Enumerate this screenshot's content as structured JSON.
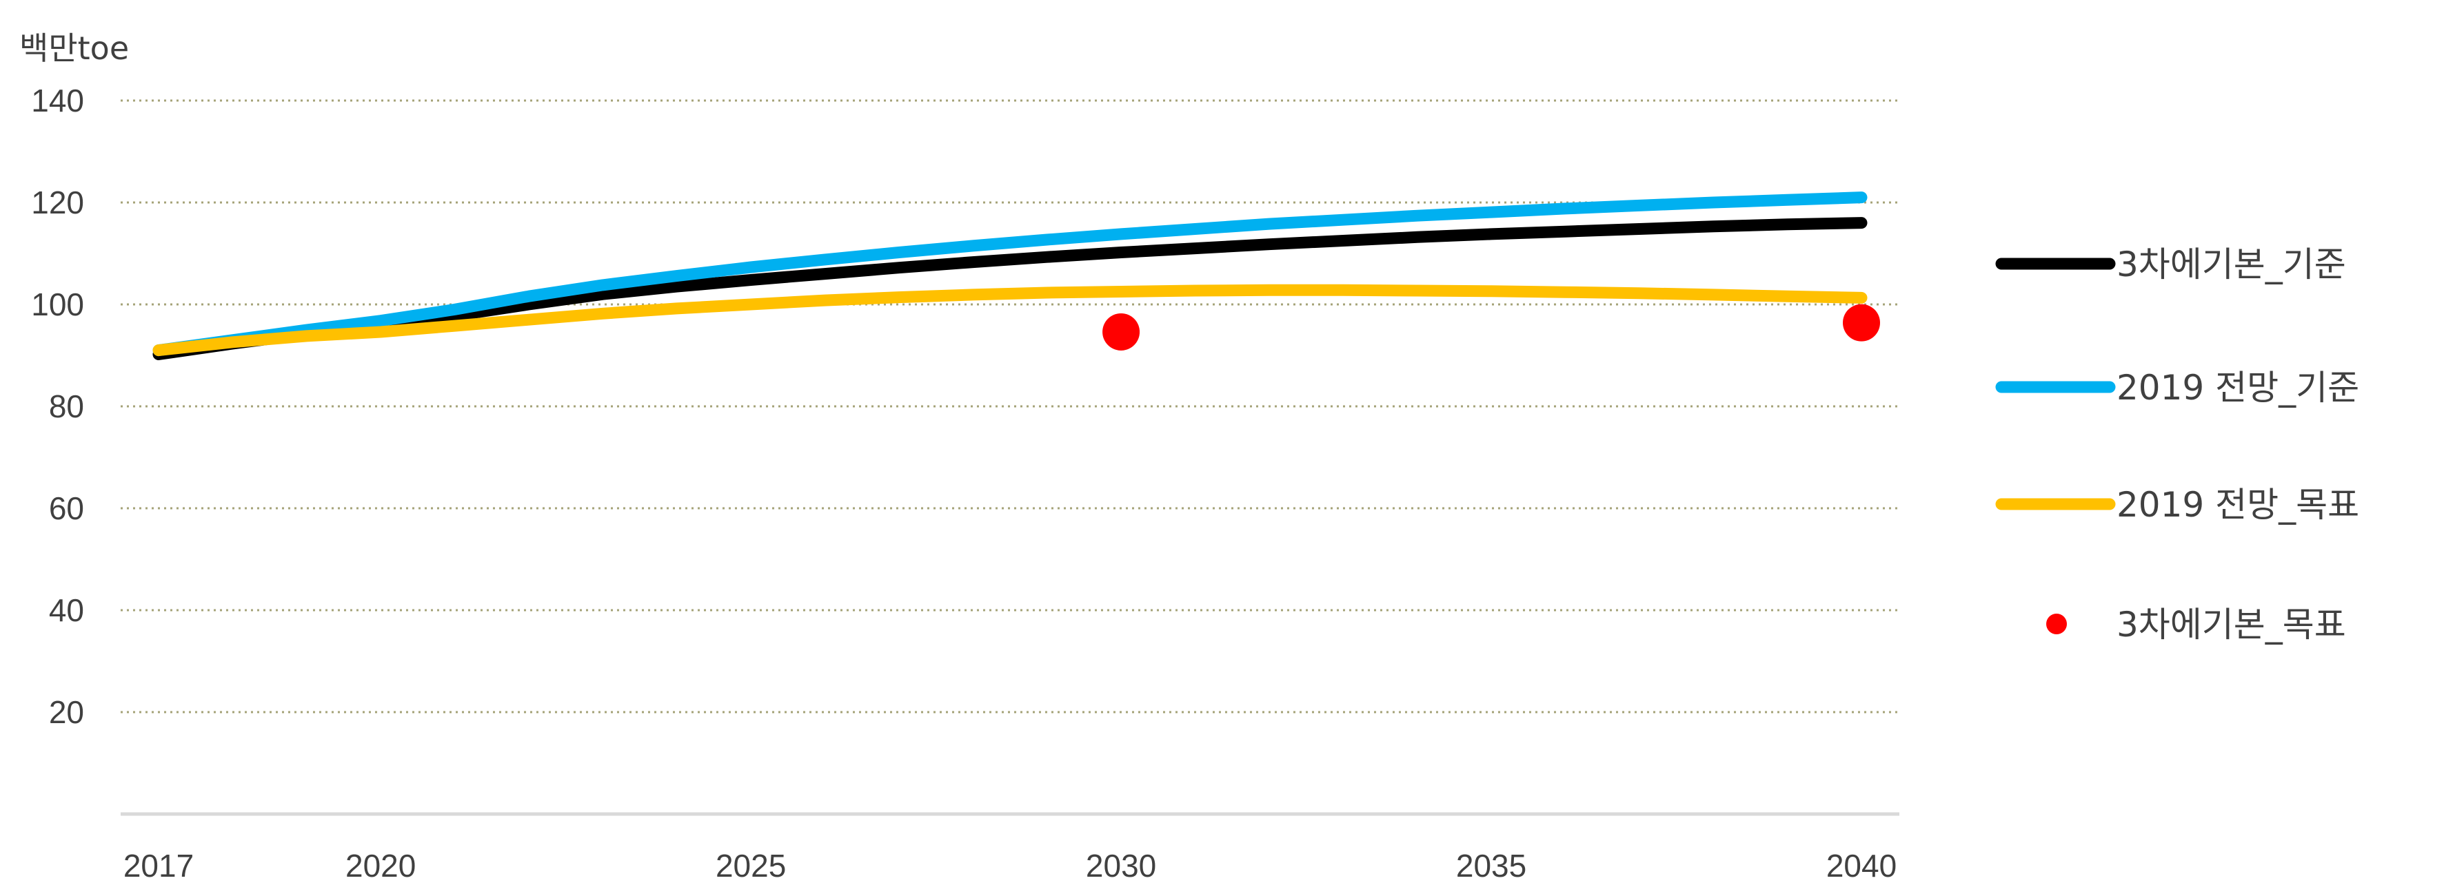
{
  "chart_data": {
    "type": "line",
    "ylabel": "백만toe",
    "ylim": [
      0,
      140
    ],
    "yticks": [
      20,
      40,
      60,
      80,
      100,
      120,
      140
    ],
    "xlim": [
      2017,
      2040
    ],
    "xticks": [
      2017,
      2020,
      2025,
      2030,
      2035,
      2040
    ],
    "grid": true,
    "legend_position": "right",
    "series": [
      {
        "name": "3차에기본_기준",
        "type": "line",
        "color": "#000000",
        "x": [
          2017,
          2018,
          2019,
          2020,
          2021,
          2022,
          2023,
          2024,
          2025,
          2026,
          2027,
          2028,
          2029,
          2030,
          2031,
          2032,
          2033,
          2034,
          2035,
          2036,
          2037,
          2038,
          2039,
          2040
        ],
        "y": [
          90.2,
          92.3,
          94.2,
          95.8,
          97.8,
          100.0,
          102.0,
          103.5,
          104.8,
          106.0,
          107.2,
          108.3,
          109.3,
          110.2,
          111.0,
          111.8,
          112.5,
          113.2,
          113.8,
          114.3,
          114.8,
          115.3,
          115.7,
          116.0
        ]
      },
      {
        "name": "2019 전망_기준",
        "type": "line",
        "color": "#00B0F0",
        "x": [
          2017,
          2018,
          2019,
          2020,
          2021,
          2022,
          2023,
          2024,
          2025,
          2026,
          2027,
          2028,
          2029,
          2030,
          2031,
          2032,
          2033,
          2034,
          2035,
          2036,
          2037,
          2038,
          2039,
          2040
        ],
        "y": [
          91.0,
          93.0,
          95.0,
          96.8,
          99.0,
          101.6,
          103.8,
          105.6,
          107.3,
          108.8,
          110.2,
          111.5,
          112.7,
          113.8,
          114.8,
          115.8,
          116.6,
          117.4,
          118.1,
          118.8,
          119.4,
          120.0,
          120.5,
          121.0
        ]
      },
      {
        "name": "2019 전망_목표",
        "type": "line",
        "color": "#FFC000",
        "x": [
          2017,
          2018,
          2019,
          2020,
          2021,
          2022,
          2023,
          2024,
          2025,
          2026,
          2027,
          2028,
          2029,
          2030,
          2031,
          2032,
          2033,
          2034,
          2035,
          2036,
          2037,
          2038,
          2039,
          2040
        ],
        "y": [
          91.0,
          92.6,
          93.8,
          94.6,
          95.8,
          97.0,
          98.2,
          99.2,
          100.0,
          100.8,
          101.4,
          101.9,
          102.3,
          102.5,
          102.7,
          102.8,
          102.8,
          102.7,
          102.6,
          102.4,
          102.2,
          101.9,
          101.6,
          101.3
        ]
      },
      {
        "name": "3차에기본_목표",
        "type": "scatter",
        "color": "#FF0000",
        "x": [
          2030,
          2040
        ],
        "y": [
          94.6,
          96.4
        ]
      }
    ]
  }
}
